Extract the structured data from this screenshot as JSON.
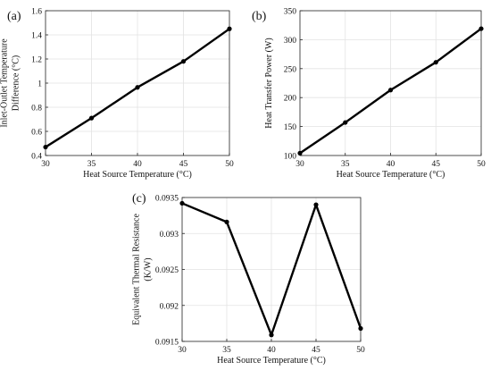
{
  "chart_data": [
    {
      "panel_label": "(a)",
      "type": "line",
      "x": [
        30,
        35,
        40,
        45,
        50
      ],
      "series": [
        {
          "values": [
            0.47,
            0.71,
            0.965,
            1.18,
            1.45
          ]
        }
      ],
      "xlabel": "Heat Source Temperature (°C)",
      "ylabel": [
        "Inlet-Outlet Temperature",
        "Difference (°C)"
      ],
      "xlim": [
        30,
        50
      ],
      "ylim": [
        0.4,
        1.6
      ],
      "xticks": [
        30,
        35,
        40,
        45,
        50
      ],
      "yticks": [
        0.4,
        0.6,
        0.8,
        1.0,
        1.2,
        1.4,
        1.6
      ],
      "ytick_labels": [
        "0.4",
        "0.6",
        "0.8",
        "1",
        "1.2",
        "1.4",
        "1.6"
      ],
      "grid": true,
      "line_color": "#000000"
    },
    {
      "panel_label": "(b)",
      "type": "line",
      "x": [
        30,
        35,
        40,
        45,
        50
      ],
      "series": [
        {
          "values": [
            104,
            157,
            213,
            261,
            319
          ]
        }
      ],
      "xlabel": "Heat Source Temperature (°C)",
      "ylabel": [
        "Heat Transfer Power (W)"
      ],
      "xlim": [
        30,
        50
      ],
      "ylim": [
        100,
        350
      ],
      "xticks": [
        30,
        35,
        40,
        45,
        50
      ],
      "yticks": [
        100,
        150,
        200,
        250,
        300,
        350
      ],
      "ytick_labels": [
        "100",
        "150",
        "200",
        "250",
        "300",
        "350"
      ],
      "grid": true,
      "line_color": "#000000"
    },
    {
      "panel_label": "(c)",
      "type": "line",
      "x": [
        30,
        35,
        40,
        45,
        50
      ],
      "series": [
        {
          "values": [
            0.09342,
            0.09316,
            0.09159,
            0.0934,
            0.09168
          ]
        }
      ],
      "xlabel": "Heat Source Temperature (°C)",
      "ylabel": [
        "Equivalent Thermal Resistance",
        "(K/W)"
      ],
      "xlim": [
        30,
        50
      ],
      "ylim": [
        0.0915,
        0.0935
      ],
      "xticks": [
        30,
        35,
        40,
        45,
        50
      ],
      "yticks": [
        0.0915,
        0.092,
        0.0925,
        0.093,
        0.0935
      ],
      "ytick_labels": [
        "0.0915",
        "0.092",
        "0.0925",
        "0.093",
        "0.0935"
      ],
      "grid": true,
      "line_color": "#000000"
    }
  ]
}
